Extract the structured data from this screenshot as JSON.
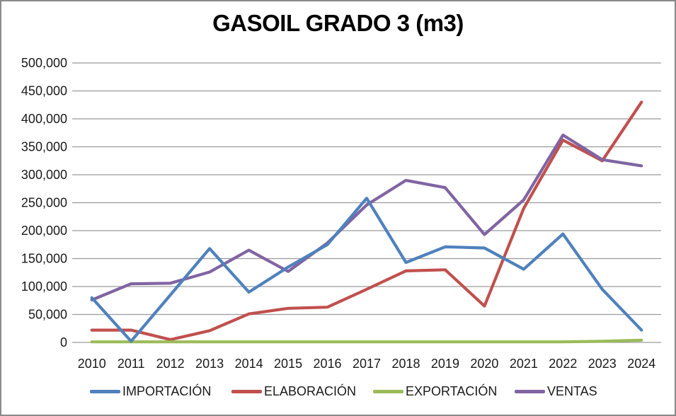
{
  "chart_data": {
    "type": "line",
    "title": "GASOIL GRADO 3 (m3)",
    "categories": [
      "2010",
      "2011",
      "2012",
      "2013",
      "2014",
      "2015",
      "2016",
      "2017",
      "2018",
      "2019",
      "2020",
      "2021",
      "2022",
      "2023",
      "2024"
    ],
    "series": [
      {
        "name": "IMPORTACIÓN",
        "color": "#4F81BD",
        "values": [
          80000,
          2000,
          85000,
          168000,
          90000,
          135000,
          175000,
          258000,
          143000,
          171000,
          169000,
          131000,
          194000,
          95000,
          22000
        ]
      },
      {
        "name": "ELABORACIÓN",
        "color": "#C0504D",
        "values": [
          22000,
          22000,
          5000,
          21000,
          51000,
          61000,
          63000,
          95000,
          128000,
          130000,
          65000,
          240000,
          362000,
          325000,
          430000
        ]
      },
      {
        "name": "EXPORTACIÓN",
        "color": "#9BBB59",
        "values": [
          1000,
          1000,
          1000,
          1000,
          1000,
          1000,
          1000,
          1000,
          1000,
          1000,
          1000,
          1000,
          1000,
          2000,
          4000
        ]
      },
      {
        "name": "VENTAS",
        "color": "#8064A2",
        "values": [
          76000,
          105000,
          106000,
          126000,
          165000,
          127000,
          178000,
          246000,
          290000,
          277000,
          193000,
          255000,
          371000,
          327000,
          316000
        ]
      }
    ],
    "xlabel": "",
    "ylabel": "",
    "ylim": [
      0,
      500000
    ],
    "ytick_step": 50000,
    "grid": "horizontal",
    "legend_position": "bottom",
    "colors": {
      "gridline": "#9a9a9a",
      "frame_border": "#8a8a8a",
      "axis_text": "#1a1a1a",
      "title_text": "#000000",
      "background": "#ffffff"
    }
  }
}
